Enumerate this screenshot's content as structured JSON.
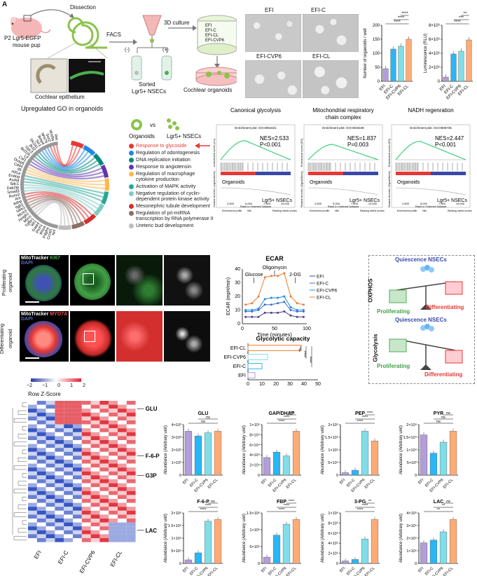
{
  "panelA": {
    "label": "A",
    "mouse_label": "P2 Lgr5-EGFP\nmouse pup",
    "mouse_label_l1": "P2 Lgr5-EGFP",
    "mouse_label_l2": "mouse pup",
    "dissection": "Dissection",
    "facs": "FACS",
    "culture": "3D culture",
    "minus": "(-)",
    "plus": "(+)",
    "sorted_l1": "Sorted",
    "sorted_l2": "Lgr5+ NSECs",
    "epithelium": "Cochlear epithelium",
    "conditions": [
      "EFI",
      "EFI-C",
      "EFI-CL",
      "EFI-CVP6"
    ],
    "organoids_label": "Cochlear organoids"
  },
  "panelB": {
    "images": [
      "EFI",
      "EFI-C",
      "EFI-CVP6",
      "EFI-CL"
    ],
    "organoid_count": {
      "ylabel": "Number of organoids / well",
      "yticks": [
        "0",
        "50",
        "100",
        "150",
        "200"
      ],
      "categories": [
        "EFI",
        "EFI-C",
        "EFI-CVP6",
        "EFI-CL"
      ],
      "values": [
        45,
        115,
        125,
        150
      ],
      "colors": [
        "#b39ddb",
        "#29b6f6",
        "#80deea",
        "#ffab76"
      ],
      "sig": [
        "****",
        "****",
        "****"
      ]
    },
    "luminescence": {
      "ylabel": "Luminescence (RLU)",
      "yticks": [
        "0",
        "2×10⁶",
        "4×10⁶",
        "6×10⁶",
        "8×10⁶"
      ],
      "categories": [
        "EFI",
        "EFI-C",
        "EFI-CVP6",
        "EFI-CL"
      ],
      "values": [
        0.6,
        3.9,
        4.3,
        5.9
      ],
      "sig": [
        "****",
        "***",
        "**"
      ]
    }
  },
  "panelC": {
    "title": "Upregulated GO in organoids",
    "genes_top": [
      "Ret",
      "Wnt5a",
      "Sox2",
      "Wnt7b",
      "Bmp4",
      "Six1",
      "Slc2a1"
    ],
    "genes_left": [
      "Bcl2",
      "Gpc3",
      "Bcl11b",
      "Lif",
      "Csf1",
      "Dusp6",
      "Cd44",
      "Il6",
      "Hif1a",
      "Endog",
      "Aurka",
      "Sdc1",
      "Dab2ip",
      "Smad3",
      "Runx2",
      "Arx",
      "Adnp",
      "Itgb1",
      "Ntrk3",
      "Mcm3",
      "Hmgb1",
      "Mycn",
      "Tgfbr1",
      "Wt1",
      "Gata4",
      "Ptch1",
      "Rhoa",
      "Pdgfra",
      "Ccnd1",
      "Nin"
    ],
    "compare_a": "Organoids",
    "compare_vs": "vs",
    "compare_b": "Lgr5+ NSECs",
    "legend": [
      {
        "label": "Response to glycoside",
        "color": "#e53935"
      },
      {
        "label": "Regulation of odontogenesis",
        "color": "#1e88e5"
      },
      {
        "label": "DNA replication initiation",
        "color": "#00897b"
      },
      {
        "label": "Response to angiotensin",
        "color": "#5e35b1"
      },
      {
        "label": "Regulation of macrophage cytokine production",
        "color": "#ffb74d"
      },
      {
        "label": "Activation of MAPK activity",
        "color": "#26a69a"
      },
      {
        "label": "Negative regulation of cyclin-dependent protein kinase activity",
        "color": "#80cbc4"
      },
      {
        "label": "Mesonephric tubule development",
        "color": "#d32f2f"
      },
      {
        "label": "Regulation of pri-miRNA transcription by RNA polymerase II",
        "color": "#8d6e63"
      },
      {
        "label": "Ureteric bud development",
        "color": "#bdbdbd"
      }
    ],
    "legend_lines": [
      [
        "Response to glycoside"
      ],
      [
        "Regulation of odontogenesis"
      ],
      [
        "DNA replication initiation"
      ],
      [
        "Response to angiotensin"
      ],
      [
        "Regulation of macrophage",
        "cytokine production"
      ],
      [
        "Activation of MAPK activity"
      ],
      [
        "Negative regulation of cyclin-",
        "dependent protein kinase activity"
      ],
      [
        "Mesonephric tubule development"
      ],
      [
        "Regulation of pri-miRNA",
        "transcription by RNA polymerase II"
      ],
      [
        "Ureteric bud development"
      ]
    ]
  },
  "panelD": {
    "plots": [
      {
        "title_l1": "Canonical glycolysis",
        "title_l2": "",
        "header": "Enrichment plot: GO:0061621",
        "nes": "NES=2.533",
        "p": "P<0.001",
        "peak": 0.62
      },
      {
        "title_l1": "Mitochondrial respiratory",
        "title_l2": "chain complex",
        "header": "Enrichment plot: GO:0033108",
        "nes": "NES=1.837",
        "p": "P=0.003",
        "peak": 0.5
      },
      {
        "title_l1": "NADH regenration",
        "title_l2": "",
        "header": "Enrichment plot: GO:0006735",
        "nes": "NES=2.447",
        "p": "P<0.001",
        "peak": 0.6
      }
    ],
    "ylabel": "Enrichment score (ES)",
    "ylabel2": "Ranked list metric (Signal2Noise)",
    "left_group": "Organoids",
    "right_group": "Lgr5+ NSECs",
    "xlabel": "Rank in Ordered Dataset",
    "xticks": [
      "2,500",
      "5,000",
      "7,500",
      "10,000"
    ],
    "legend": [
      "Enrichment profile",
      "Hits",
      "Ranking metric scores"
    ]
  },
  "panelE": {
    "row1_stain": [
      "MitoTracker",
      "KI67",
      "DAPI"
    ],
    "row1_colors": [
      "#ffffff",
      "#4caf50",
      "#3f51b5"
    ],
    "row1_label_l1": "Proliferating",
    "row1_label_l2": "organoid",
    "row2_stain": [
      "MitoTracker",
      "MYO7A",
      "DAPI"
    ],
    "row2_colors": [
      "#ffffff",
      "#ef5350",
      "#3f51b5"
    ],
    "row2_label_l1": "Differentiating",
    "row2_label_l2": "organoid"
  },
  "panelF": {
    "title": "ECAR",
    "ylabel": "ECAR (mpH/min)",
    "xlabel": "Time (minutes)",
    "ylim": [
      0,
      40
    ],
    "yticks": [
      "0",
      "10",
      "20",
      "30",
      "40"
    ],
    "xticks": [
      "0",
      "50",
      "100"
    ],
    "annotations": [
      "Glucose",
      "Oligomycin",
      "2-DG"
    ],
    "x": [
      5,
      15,
      25,
      35,
      45,
      55,
      65,
      75,
      85,
      95
    ],
    "series": [
      {
        "name": "EFI",
        "color": "#4a3f8f",
        "values": [
          5,
          5,
          5,
          8,
          8,
          8,
          9,
          6,
          5,
          5
        ]
      },
      {
        "name": "EFI-C",
        "color": "#3b6fc9",
        "values": [
          9,
          9,
          10,
          14,
          14,
          15,
          16,
          10,
          9,
          9
        ]
      },
      {
        "name": "EFI-CVP6",
        "color": "#1e88e5",
        "values": [
          10,
          10,
          11,
          18,
          19,
          19,
          20,
          12,
          10,
          10
        ]
      },
      {
        "name": "EFI-CL",
        "color": "#ef7b2e",
        "values": [
          14,
          15,
          20,
          34,
          35,
          35,
          37,
          20,
          15,
          14
        ]
      }
    ],
    "capacity": {
      "title": "Glycolytic capacity",
      "ylabel": "ECAR (mpH/min)",
      "xlim": [
        0,
        50
      ],
      "xticks": [
        "0",
        "10",
        "20",
        "30",
        "40",
        "50"
      ],
      "categories": [
        "EFI-CL",
        "EFI-CVP6",
        "EFI-C",
        "EFI"
      ],
      "values": [
        38,
        14,
        10,
        5
      ],
      "colors": [
        "#ef7b2e",
        "#80deea",
        "#29b6f6",
        "#b39ddb"
      ],
      "sig": [
        "**",
        "****",
        "****"
      ]
    }
  },
  "panelG": {
    "top_title": "Quiescence NSECs",
    "top_side": "OXPHOS",
    "bottom_title": "Quiescence NSECs",
    "bottom_side": "Glycolysis",
    "left_label": "Proliferating",
    "right_label": "Differentiating"
  },
  "panelH": {
    "scale_label": "Row Z-Score",
    "scale_ticks": [
      "−2",
      "−1",
      "0",
      "1",
      "2"
    ],
    "columns": [
      "EFI",
      "EFI-C",
      "EFI-CVP6",
      "EFI-CL"
    ],
    "markers": [
      "GLU",
      "F-6-P",
      "G3P",
      "LAC"
    ]
  },
  "panelI": {
    "ylabel": "Abundance (Arbitrary unit)",
    "categories": [
      "EFI",
      "EFI-C",
      "EFI-CVP6",
      "EFI-CL"
    ],
    "colors": [
      "#b39ddb",
      "#29b6f6",
      "#80deea",
      "#ffab76"
    ],
    "charts": [
      {
        "title": "GLU",
        "yticks": [
          "0",
          "1×10³",
          "2×10³",
          "3×10³",
          "4×10³"
        ],
        "values": [
          2.8,
          2.5,
          2.7,
          2.8
        ],
        "sig": [
          "ns",
          "ns"
        ]
      },
      {
        "title": "GAP/DHAP",
        "yticks": [
          "0",
          "2×10⁴",
          "4×10⁴",
          "6×10⁴",
          "8×10⁴",
          "1×10⁵"
        ],
        "values": [
          3.2,
          4.2,
          3.5,
          8.0
        ],
        "sig": [
          "****",
          "****",
          "****"
        ]
      },
      {
        "title": "PEP",
        "yticks": [
          "0",
          "5×10⁴",
          "1×10⁵",
          "1.5×10⁵",
          "2×10⁵"
        ],
        "values": [
          0.1,
          0.2,
          1.8,
          1.4
        ],
        "sig": [
          "****",
          "****",
          "****"
        ]
      },
      {
        "title": "PYR",
        "yticks": [
          "0",
          "5×10³",
          "1×10⁴",
          "1.5×10⁴",
          "2×10⁴"
        ],
        "values": [
          1.1,
          0.6,
          0.9,
          1.2
        ],
        "sig": [
          "ns",
          "ns",
          "ns"
        ]
      },
      {
        "title": "F-6-P",
        "yticks": [
          "0",
          "5×10⁵",
          "1×10⁶",
          "1.5×10⁶",
          "2×10⁶"
        ],
        "values": [
          0.1,
          0.3,
          1.2,
          1.25
        ],
        "sig": [
          "****",
          "****",
          "ns"
        ]
      },
      {
        "title": "FBP",
        "yticks": [
          "0",
          "5×10⁵",
          "1×10⁶",
          "1.5×10⁶"
        ],
        "values": [
          0.2,
          0.9,
          1.25,
          1.4
        ],
        "sig": [
          "****",
          "****",
          "****"
        ]
      },
      {
        "title": "3-PG",
        "yticks": [
          "0",
          "2×10⁵",
          "4×10⁵",
          "6×10⁵",
          "8×10⁵",
          "1×10⁶"
        ],
        "values": [
          0.05,
          0.08,
          0.5,
          0.9
        ],
        "sig": [
          "****",
          "****",
          "**"
        ]
      },
      {
        "title": "LAC",
        "yticks": [
          "0",
          "1×10⁵",
          "2×10⁵",
          "3×10⁵",
          "4×10⁵"
        ],
        "values": [
          1.5,
          1.7,
          2.3,
          3.2
        ],
        "sig": [
          "**",
          "**",
          "ns"
        ]
      }
    ]
  }
}
